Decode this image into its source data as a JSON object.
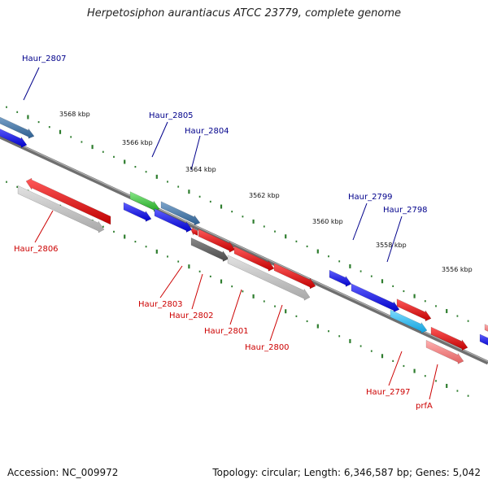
{
  "title": "Herpetosiphon aurantiacus ATCC 23779, complete genome",
  "footer": {
    "accession": "Accession: NC_009972",
    "topology": "Topology: circular; Length: 6,346,587 bp; Genes: 5,042"
  },
  "colors": {
    "backbone": "#7a7a7a",
    "tick": "#2e7d2e",
    "label_top": "#00008b",
    "label_bottom": "#cc0000"
  },
  "ticks": [
    "3568 kbp",
    "3566 kbp",
    "3564 kbp",
    "3562 kbp",
    "3560 kbp",
    "3558 kbp",
    "3556 kbp"
  ],
  "genes": [
    {
      "label": "Haur_2807",
      "strand": "top",
      "color": "#4a7fb5"
    },
    {
      "label": "Haur_2806",
      "strand": "bottom",
      "color": "#e8202a"
    },
    {
      "label": "Haur_2805",
      "strand": "top",
      "color": "#3cc43c"
    },
    {
      "label": "Haur_2804",
      "strand": "top",
      "color": "#4a7fb5"
    },
    {
      "label": "Haur_2803",
      "strand": "bottom",
      "color": "#e8202a"
    },
    {
      "label": "Haur_2802",
      "strand": "bottom",
      "color": "#e8202a"
    },
    {
      "label": "Haur_2801",
      "strand": "bottom",
      "color": "#e8202a"
    },
    {
      "label": "Haur_2800",
      "strand": "bottom",
      "color": "#e8202a"
    },
    {
      "label": "Haur_2799",
      "strand": "top",
      "color": "#1010ee"
    },
    {
      "label": "Haur_2798",
      "strand": "top",
      "color": "#1010ee"
    },
    {
      "label": "Haur_2797",
      "strand": "bottom",
      "color": "#1eb4ec"
    },
    {
      "label": "prfA",
      "strand": "bottom",
      "color": "#e8202a"
    }
  ]
}
